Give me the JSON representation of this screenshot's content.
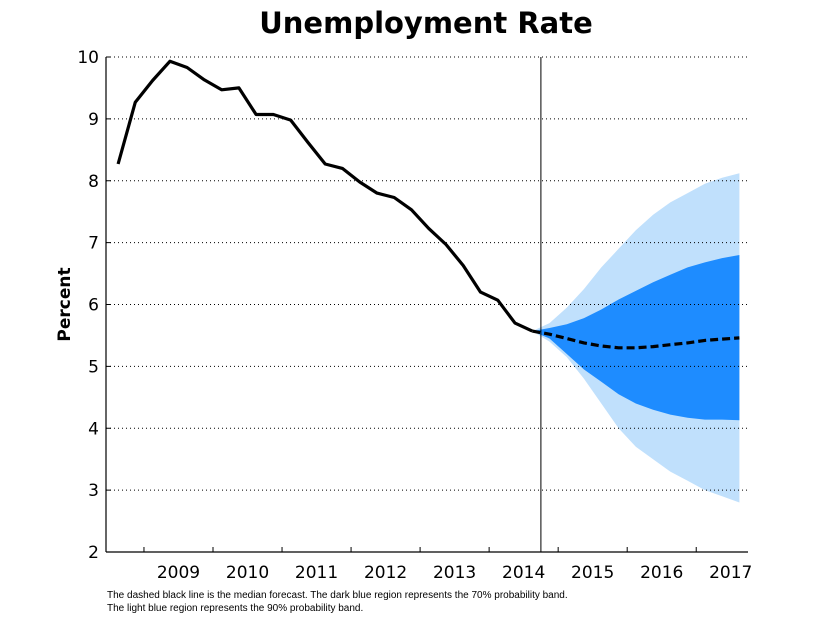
{
  "chart_data": {
    "type": "line",
    "title": "Unemployment Rate",
    "ylabel": "Percent",
    "xlabel": "",
    "ylim": [
      2,
      10
    ],
    "xlim": [
      2008.45,
      2017.75
    ],
    "y_ticks": [
      2,
      3,
      4,
      5,
      6,
      7,
      8,
      9,
      10
    ],
    "x_tick_labels": [
      "2009",
      "2010",
      "2011",
      "2012",
      "2013",
      "2014",
      "2015",
      "2016",
      "2017"
    ],
    "grid": "horizontal dotted",
    "forecast_start": 2014.75,
    "series": [
      {
        "style": "solid",
        "color": "#000000",
        "x": [
          2008.625,
          2008.875,
          2009.125,
          2009.375,
          2009.625,
          2009.875,
          2010.125,
          2010.375,
          2010.625,
          2010.875,
          2011.125,
          2011.375,
          2011.625,
          2011.875,
          2012.125,
          2012.375,
          2012.625,
          2012.875,
          2013.125,
          2013.375,
          2013.625,
          2013.875,
          2014.125,
          2014.375,
          2014.625
        ],
        "y": [
          8.27,
          9.27,
          9.62,
          9.93,
          9.83,
          9.63,
          9.47,
          9.5,
          9.07,
          9.07,
          8.98,
          8.62,
          8.27,
          8.2,
          7.98,
          7.8,
          7.73,
          7.53,
          7.23,
          6.97,
          6.63,
          6.2,
          6.07,
          5.7,
          5.57
        ]
      },
      {
        "style": "dashed",
        "color": "#000000",
        "x": [
          2014.625,
          2014.875,
          2015.125,
          2015.375,
          2015.625,
          2015.875,
          2016.125,
          2016.375,
          2016.625,
          2016.875,
          2017.125,
          2017.375,
          2017.625
        ],
        "y": [
          5.57,
          5.52,
          5.45,
          5.38,
          5.33,
          5.3,
          5.3,
          5.32,
          5.35,
          5.38,
          5.42,
          5.44,
          5.46
        ]
      }
    ],
    "bands": [
      {
        "probability": "90%",
        "color": "#c0e0fc",
        "x": [
          2014.625,
          2014.875,
          2015.125,
          2015.375,
          2015.625,
          2015.875,
          2016.125,
          2016.375,
          2016.625,
          2016.875,
          2017.125,
          2017.375,
          2017.625
        ],
        "lower": [
          5.57,
          5.4,
          5.15,
          4.8,
          4.4,
          4.0,
          3.7,
          3.5,
          3.3,
          3.15,
          3.0,
          2.9,
          2.8
        ],
        "upper": [
          5.57,
          5.7,
          5.95,
          6.25,
          6.6,
          6.9,
          7.2,
          7.45,
          7.65,
          7.8,
          7.95,
          8.05,
          8.12
        ]
      },
      {
        "probability": "70%",
        "color": "#1e8cff",
        "x": [
          2014.625,
          2014.875,
          2015.125,
          2015.375,
          2015.625,
          2015.875,
          2016.125,
          2016.375,
          2016.625,
          2016.875,
          2017.125,
          2017.375,
          2017.625
        ],
        "lower": [
          5.57,
          5.45,
          5.2,
          4.95,
          4.75,
          4.55,
          4.4,
          4.3,
          4.22,
          4.17,
          4.14,
          4.14,
          4.13
        ],
        "upper": [
          5.57,
          5.62,
          5.68,
          5.78,
          5.92,
          6.08,
          6.22,
          6.36,
          6.48,
          6.6,
          6.68,
          6.75,
          6.8
        ]
      }
    ]
  },
  "notes": {
    "line1": "The dashed black line is the median forecast. The dark blue region represents the 70% probability band.",
    "line2": "The light blue region represents the 90% probability band."
  }
}
